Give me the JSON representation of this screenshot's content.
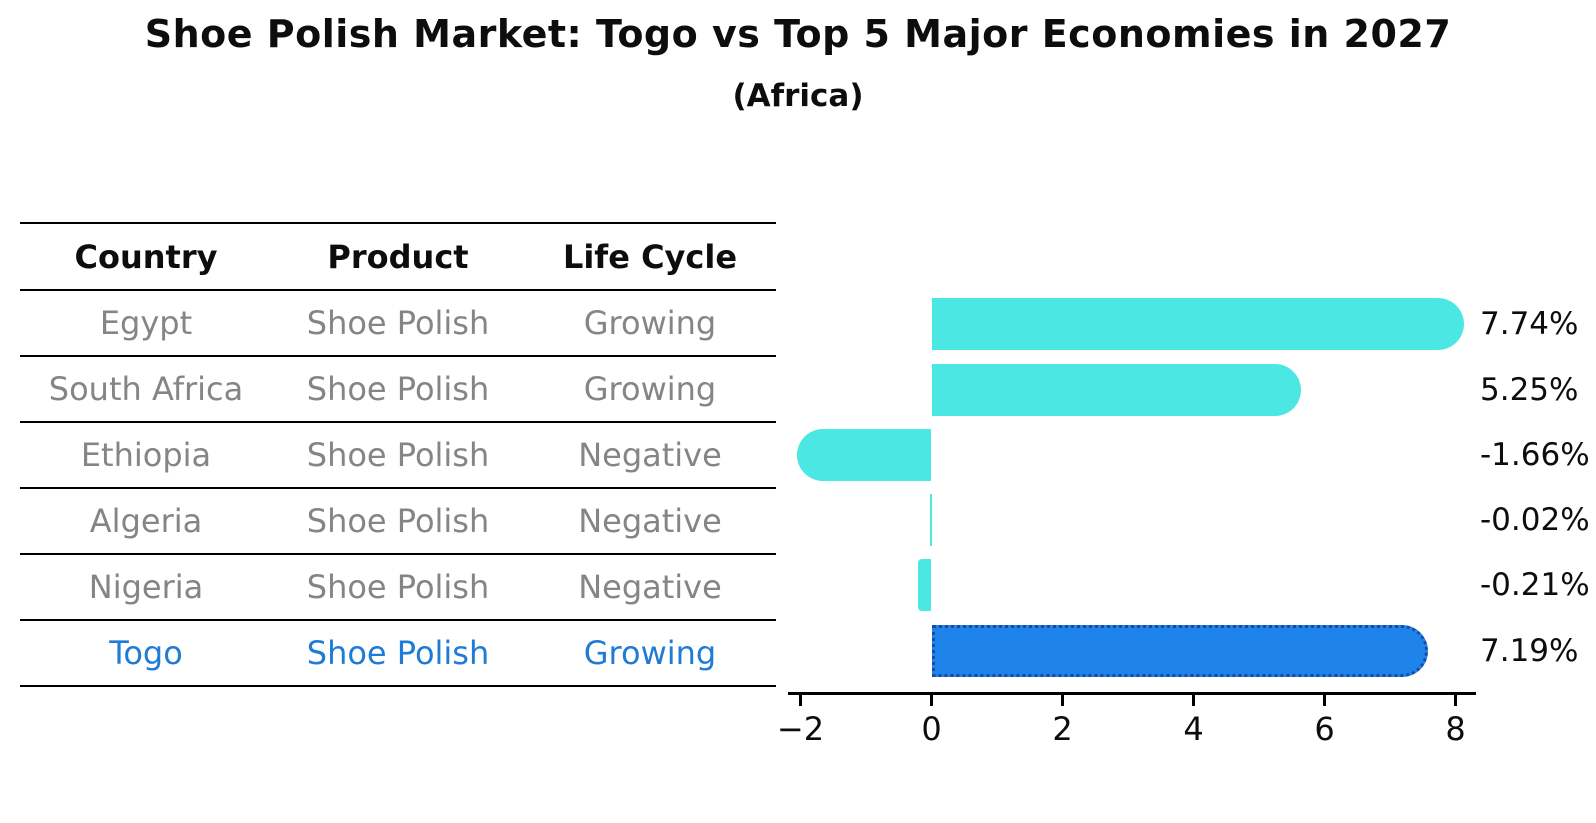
{
  "title": "Shoe Polish Market: Togo vs Top 5 Major Economies in 2027",
  "subtitle": "(Africa)",
  "table": {
    "headers": [
      "Country",
      "Product",
      "Life Cycle"
    ],
    "rows": [
      {
        "country": "Egypt",
        "product": "Shoe Polish",
        "life_cycle": "Growing",
        "highlight": false
      },
      {
        "country": "South Africa",
        "product": "Shoe Polish",
        "life_cycle": "Growing",
        "highlight": false
      },
      {
        "country": "Ethiopia",
        "product": "Shoe Polish",
        "life_cycle": "Negative",
        "highlight": false
      },
      {
        "country": "Algeria",
        "product": "Shoe Polish",
        "life_cycle": "Negative",
        "highlight": false
      },
      {
        "country": "Nigeria",
        "product": "Shoe Polish",
        "life_cycle": "Negative",
        "highlight": false
      },
      {
        "country": "Togo",
        "product": "Shoe Polish",
        "life_cycle": "Growing",
        "highlight": true
      }
    ]
  },
  "chart_data": {
    "type": "bar",
    "orientation": "horizontal",
    "title": "Shoe Polish Market: Togo vs Top 5 Major Economies in 2027",
    "subtitle": "(Africa)",
    "categories": [
      "Egypt",
      "South Africa",
      "Ethiopia",
      "Algeria",
      "Nigeria",
      "Togo"
    ],
    "values": [
      7.74,
      5.25,
      -1.66,
      -0.02,
      -0.21,
      7.19
    ],
    "value_labels": [
      "7.74%",
      "5.25%",
      "-1.66%",
      "-0.02%",
      "-0.21%",
      "7.19%"
    ],
    "xlabel": "",
    "ylabel": "",
    "xlim": [
      -2.2,
      8.3
    ],
    "xticks": [
      -2,
      0,
      2,
      4,
      6,
      8
    ],
    "xtick_labels": [
      "−2",
      "0",
      "2",
      "4",
      "6",
      "8"
    ],
    "grid": false,
    "legend": false,
    "highlight_index": 5,
    "bar_style": "rounded-end, highlighted bar has dotted border"
  },
  "colors": {
    "bar_cyan": "#4be8e3",
    "bar_blue": "#1e83ea",
    "bar_blue_border": "#1b4a9e",
    "row_text_gray": "#858585",
    "highlight_text_blue": "#1f7cd6",
    "axis_black": "#000000",
    "background": "#ffffff"
  }
}
